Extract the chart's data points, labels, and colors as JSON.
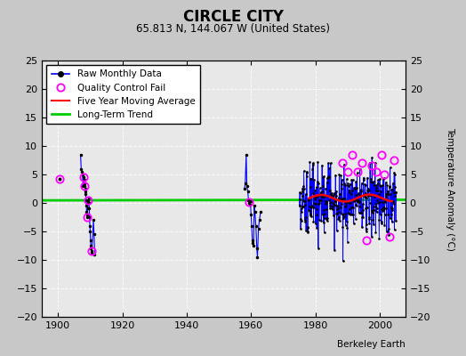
{
  "title": "CIRCLE CITY",
  "subtitle": "65.813 N, 144.067 W (United States)",
  "ylabel_right": "Temperature Anomaly (°C)",
  "watermark": "Berkeley Earth",
  "xlim": [
    1895,
    2008
  ],
  "ylim": [
    -20,
    25
  ],
  "yticks_right": [
    -20,
    -15,
    -10,
    -5,
    0,
    5,
    10,
    15,
    20,
    25
  ],
  "yticks_left": [
    -20,
    -15,
    -10,
    -5,
    0,
    5,
    10,
    15,
    20,
    25
  ],
  "xticks": [
    1900,
    1920,
    1940,
    1960,
    1980,
    2000
  ],
  "bg_color": "#c8c8c8",
  "plot_bg_color": "#e8e8e8",
  "raw_color": "#0000ff",
  "qc_color": "#ff00ff",
  "moving_avg_color": "#ff0000",
  "trend_color": "#00cc00",
  "figsize": [
    5.24,
    4.0
  ],
  "dpi": 100
}
